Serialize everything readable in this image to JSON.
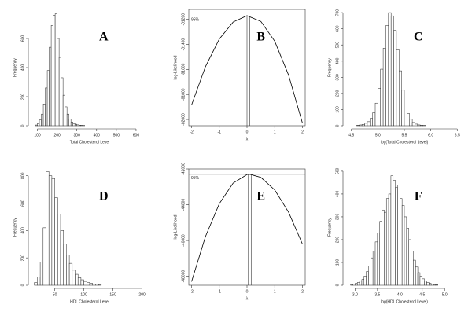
{
  "chart_data": [
    {
      "type": "histogram",
      "panel_label": "A",
      "xlabel": "Total Cholesterol Level",
      "ylabel": "Frequency",
      "bins": [
        90,
        100,
        110,
        120,
        130,
        140,
        150,
        160,
        170,
        180,
        190,
        200,
        210,
        220,
        230,
        240,
        250,
        260,
        270,
        280,
        290,
        300,
        310,
        320,
        330,
        340
      ],
      "values": [
        5,
        15,
        40,
        80,
        150,
        260,
        380,
        540,
        690,
        760,
        770,
        600,
        470,
        330,
        210,
        130,
        80,
        45,
        25,
        15,
        10,
        6,
        4,
        3,
        2
      ],
      "xlim": [
        70,
        660
      ],
      "xticks": [
        100,
        200,
        300,
        400,
        500,
        600
      ],
      "ylim": [
        0,
        800
      ],
      "yticks": [
        0,
        200,
        400,
        600
      ],
      "color": "#ffffff"
    },
    {
      "type": "line",
      "panel_label": "B",
      "xlabel": "λ",
      "ylabel": "log-Likelihood",
      "annotation": "95%",
      "x": [
        -2,
        -1.5,
        -1,
        -0.5,
        0,
        0.5,
        1,
        1.5,
        2
      ],
      "values": [
        -81884,
        -81578,
        -81357,
        -81221,
        -81170,
        -81216,
        -81374,
        -81645,
        -82029
      ],
      "ci": [
        0.0,
        0.1
      ],
      "ci_y": -81172,
      "xlim": [
        -2.1,
        2.1
      ],
      "xticks": [
        -2,
        -1,
        0,
        1,
        2
      ],
      "ylim": [
        -82050,
        -81120
      ],
      "yticks": [
        -82000,
        -81800,
        -81600,
        -81400,
        -81200
      ],
      "color": "#000000"
    },
    {
      "type": "histogram",
      "panel_label": "C",
      "xlabel": "log(Total Cholesterol Level)",
      "ylabel": "Frequency",
      "bins": [
        4.6,
        4.65,
        4.7,
        4.75,
        4.8,
        4.85,
        4.9,
        4.95,
        5.0,
        5.05,
        5.1,
        5.15,
        5.2,
        5.25,
        5.3,
        5.35,
        5.4,
        5.45,
        5.5,
        5.55,
        5.6,
        5.65,
        5.7,
        5.75,
        5.8,
        5.85,
        5.9
      ],
      "values": [
        3,
        5,
        8,
        15,
        25,
        45,
        80,
        140,
        230,
        350,
        480,
        620,
        700,
        680,
        590,
        470,
        340,
        220,
        130,
        75,
        40,
        20,
        10,
        5,
        3,
        2
      ],
      "xlim": [
        4.4,
        6.6
      ],
      "xticks": [
        {
          "value": 4.5,
          "label": "4.5"
        },
        {
          "value": 5,
          "label": "5.0"
        },
        {
          "value": 5.5,
          "label": "5.5"
        },
        {
          "value": 6,
          "label": "6.0"
        },
        {
          "value": 6.5,
          "label": "6.5"
        }
      ],
      "ylim": [
        0,
        720
      ],
      "yticks": [
        0,
        100,
        200,
        300,
        400,
        500,
        600,
        700
      ],
      "color": "#ffffff"
    },
    {
      "type": "histogram",
      "panel_label": "D",
      "xlabel": "HDL Cholesterol Level",
      "ylabel": "Frequency",
      "bins": [
        15,
        20,
        25,
        30,
        35,
        40,
        45,
        50,
        55,
        60,
        65,
        70,
        75,
        80,
        85,
        90,
        95,
        100,
        105,
        110,
        115,
        120,
        125,
        130
      ],
      "values": [
        20,
        60,
        170,
        420,
        830,
        800,
        780,
        640,
        520,
        400,
        300,
        220,
        160,
        110,
        80,
        55,
        40,
        28,
        20,
        14,
        10,
        7,
        5
      ],
      "xlim": [
        10,
        210
      ],
      "xticks": [
        50,
        100,
        150,
        200
      ],
      "ylim": [
        0,
        850
      ],
      "yticks": [
        0,
        200,
        400,
        600,
        800
      ],
      "color": "#ffffff"
    },
    {
      "type": "line",
      "panel_label": "E",
      "xlabel": "λ",
      "ylabel": "log-Likelihood",
      "annotation": "95%",
      "x": [
        -2,
        -1.5,
        -1,
        -0.5,
        0,
        0.1,
        0.5,
        1,
        1.5,
        2
      ],
      "values": [
        -48298,
        -45782,
        -43946,
        -42790,
        -42314,
        -42300,
        -42473,
        -43175,
        -44417,
        -46199
      ],
      "ci": [
        0.05,
        0.15
      ],
      "ci_y": -42302,
      "xlim": [
        -2.1,
        2.1
      ],
      "xticks": [
        -2,
        -1,
        0,
        1,
        2
      ],
      "ylim": [
        -48500,
        -42000
      ],
      "yticks": [
        -48000,
        -46000,
        -44000,
        -42000
      ],
      "color": "#000000"
    },
    {
      "type": "histogram",
      "panel_label": "F",
      "xlabel": "log(HDL Cholesterol Level)",
      "ylabel": "Frequency",
      "bins": [
        2.9,
        2.95,
        3.0,
        3.05,
        3.1,
        3.15,
        3.2,
        3.25,
        3.3,
        3.35,
        3.4,
        3.45,
        3.5,
        3.55,
        3.6,
        3.65,
        3.7,
        3.75,
        3.8,
        3.85,
        3.9,
        3.95,
        4.0,
        4.05,
        4.1,
        4.15,
        4.2,
        4.25,
        4.3,
        4.35,
        4.4,
        4.45,
        4.5,
        4.55,
        4.6,
        4.65,
        4.7,
        4.75,
        4.8,
        4.85
      ],
      "values": [
        3,
        5,
        8,
        12,
        18,
        25,
        40,
        60,
        85,
        120,
        150,
        190,
        230,
        280,
        330,
        320,
        380,
        400,
        480,
        460,
        430,
        440,
        380,
        350,
        300,
        250,
        200,
        150,
        110,
        80,
        55,
        40,
        28,
        18,
        12,
        8,
        5,
        3,
        2
      ],
      "xlim": [
        2.8,
        5.4
      ],
      "xticks": [
        {
          "value": 3,
          "label": "3.0"
        },
        {
          "value": 3.5,
          "label": "3.5"
        },
        {
          "value": 4,
          "label": "4.0"
        },
        {
          "value": 4.5,
          "label": "4.5"
        },
        {
          "value": 5,
          "label": "5.0"
        }
      ],
      "ylim": [
        0,
        510
      ],
      "yticks": [
        0,
        100,
        200,
        300,
        400,
        500
      ],
      "color": "#ffffff"
    }
  ]
}
